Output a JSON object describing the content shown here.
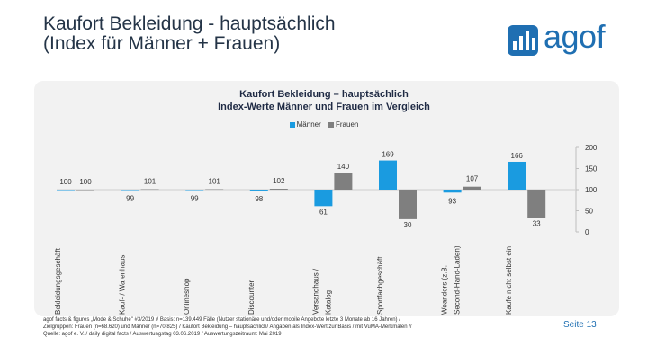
{
  "page": {
    "title_line1": "Kaufort Bekleidung - hauptsächlich",
    "title_line2": "(Index für Männer + Frauen)",
    "logo_text": "agof",
    "page_number": "Seite 13",
    "footnote_lines": [
      "agof facts & figures „Mode & Schuhe\" #3/2019 // Basis: n=139.449 Fälle (Nutzer stationäre und/oder mobile Angebote letzte 3 Monate ab 16 Jahren) /",
      "Zielgruppen: Frauen (n=68.620) und Männer (n=70.825) / Kaufort Bekleidung – hauptsächlich/ Angaben als Index-Wert zur Basis / mit VuMA-Merkmalen //",
      "Quelle: agof e. V. / daily digital facts / Auswertungstag 03.06.2019 / Auswertungszeitraum: Mai 2019"
    ]
  },
  "colors": {
    "maenner": "#1a9be0",
    "frauen": "#7f7f7f",
    "accent": "#1f6fb2"
  },
  "chart_data": {
    "type": "bar",
    "title": "Kaufort Bekleidung – hauptsächlich",
    "subtitle": "Index-Werte Männer und Frauen im Vergleich",
    "categories": [
      "Bekleidungsgeschäft",
      "Kauf- / Warenhaus",
      "Onlineshop",
      "Discounter",
      "Versandhaus / Katalog",
      "Sportfachgeschäft",
      "Woanders (z.B. Second-Hand-Laden)",
      "Kaufe nicht selbst ein"
    ],
    "series": [
      {
        "name": "Männer",
        "values": [
          100,
          99,
          99,
          98,
          61,
          169,
          93,
          166
        ]
      },
      {
        "name": "Frauen",
        "values": [
          100,
          101,
          101,
          102,
          140,
          30,
          107,
          33
        ]
      }
    ],
    "baseline": 100,
    "ylim": [
      0,
      200
    ],
    "yticks": [
      0,
      50,
      100,
      150,
      200
    ],
    "legend_position": "top"
  }
}
